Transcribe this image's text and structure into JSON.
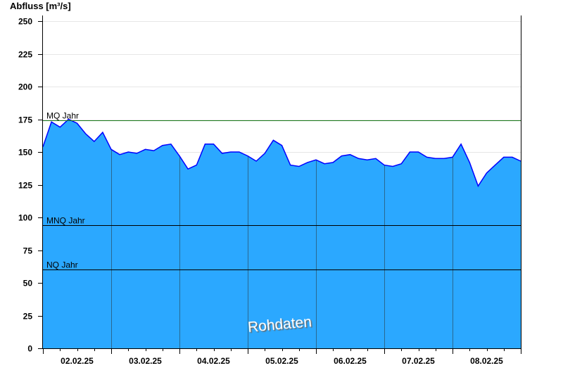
{
  "chart_data": {
    "type": "area",
    "ylabel": "Abfluss [m³/s]",
    "ylim": [
      0,
      250
    ],
    "yticks": [
      0,
      25,
      50,
      75,
      100,
      125,
      150,
      175,
      200,
      225,
      250
    ],
    "xlim": [
      "02.02.25 00:00",
      "09.02.25 00:00"
    ],
    "xtick_labels": [
      "02.02.25",
      "03.02.25",
      "04.02.25",
      "05.02.25",
      "06.02.25",
      "07.02.25",
      "08.02.25"
    ],
    "x_start": "02.02.25 00:00",
    "interval_hours": 3,
    "values": [
      154,
      173,
      169,
      175,
      172,
      164,
      158,
      165,
      152,
      148,
      150,
      149,
      152,
      151,
      155,
      156,
      147,
      137,
      140,
      156,
      156,
      149,
      150,
      150,
      147,
      143,
      149,
      159,
      155,
      140,
      139,
      142,
      144,
      141,
      142,
      147,
      148,
      145,
      144,
      145,
      140,
      139,
      141,
      150,
      150,
      146,
      145,
      145,
      146,
      156,
      142,
      124,
      134,
      140,
      146,
      146,
      143
    ],
    "reference_lines": [
      {
        "label": "MQ Jahr",
        "value": 174,
        "color": "#1a7a1a"
      },
      {
        "label": "MNQ Jahr",
        "value": 94,
        "color": "#000000"
      },
      {
        "label": "NQ Jahr",
        "value": 60,
        "color": "#000000"
      }
    ],
    "watermark": "Rohdaten",
    "fill_color": "#2ba8ff",
    "line_color": "#0000ff",
    "grid": true
  }
}
